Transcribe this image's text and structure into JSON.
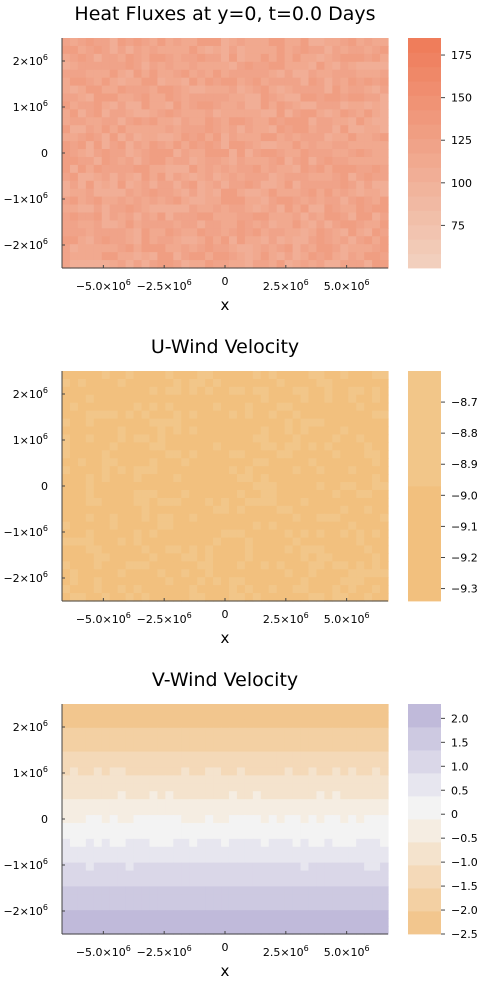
{
  "chart_data": [
    {
      "type": "heatmap",
      "title": "Heat Fluxes at y=0, t=0.0 Days",
      "xlabel": "x",
      "ylabel": "",
      "x_ticks": [
        {
          "value": -5000000,
          "base": "−5.0×10",
          "exp": "6"
        },
        {
          "value": -2500000,
          "base": "−2.5×10",
          "exp": "6"
        },
        {
          "value": 0,
          "base": "0",
          "exp": ""
        },
        {
          "value": 2500000,
          "base": "2.5×10",
          "exp": "6"
        },
        {
          "value": 5000000,
          "base": "5.0×10",
          "exp": "6"
        }
      ],
      "y_ticks": [
        {
          "value": 2000000,
          "base": "2×10",
          "exp": "6"
        },
        {
          "value": 1000000,
          "base": "1×10",
          "exp": "6"
        },
        {
          "value": 0,
          "base": "0",
          "exp": ""
        },
        {
          "value": -1000000,
          "base": "−1×10",
          "exp": "6"
        },
        {
          "value": -2000000,
          "base": "−2×10",
          "exp": "6"
        }
      ],
      "xlim": [
        -6700000,
        6700000
      ],
      "ylim": [
        -2500000,
        2500000
      ],
      "color_range": [
        50,
        185
      ],
      "colorbar_ticks": [
        {
          "value": 175,
          "label": "175"
        },
        {
          "value": 150,
          "label": "150"
        },
        {
          "value": 125,
          "label": "125"
        },
        {
          "value": 100,
          "label": "100"
        },
        {
          "value": 75,
          "label": "75"
        }
      ],
      "colorbar_levels": 16,
      "colorbar_colors": [
        "#f2d2c0",
        "#ef7a58"
      ],
      "field": "random",
      "field_mean": 118,
      "field_spread": 14
    },
    {
      "type": "heatmap",
      "title": "U-Wind Velocity",
      "xlabel": "x",
      "ylabel": "",
      "x_ticks": [
        {
          "value": -5000000,
          "base": "−5.0×10",
          "exp": "6"
        },
        {
          "value": -2500000,
          "base": "−2.5×10",
          "exp": "6"
        },
        {
          "value": 0,
          "base": "0",
          "exp": ""
        },
        {
          "value": 2500000,
          "base": "2.5×10",
          "exp": "6"
        },
        {
          "value": 5000000,
          "base": "5.0×10",
          "exp": "6"
        }
      ],
      "y_ticks": [
        {
          "value": 2000000,
          "base": "2×10",
          "exp": "6"
        },
        {
          "value": 1000000,
          "base": "1×10",
          "exp": "6"
        },
        {
          "value": 0,
          "base": "0",
          "exp": ""
        },
        {
          "value": -1000000,
          "base": "−1×10",
          "exp": "6"
        },
        {
          "value": -2000000,
          "base": "−2×10",
          "exp": "6"
        }
      ],
      "xlim": [
        -6700000,
        6700000
      ],
      "ylim": [
        -2500000,
        2500000
      ],
      "color_range": [
        -9.34,
        -8.6
      ],
      "colorbar_ticks": [
        {
          "value": -8.7,
          "label": "−8.7"
        },
        {
          "value": -8.8,
          "label": "−8.8"
        },
        {
          "value": -8.9,
          "label": "−8.9"
        },
        {
          "value": -9.0,
          "label": "−9.0"
        },
        {
          "value": -9.1,
          "label": "−9.1"
        },
        {
          "value": -9.2,
          "label": "−9.2"
        },
        {
          "value": -9.3,
          "label": "−9.3"
        }
      ],
      "colorbar_levels": 2,
      "colorbar_colors": [
        "#f2bd78",
        "#f2c98f"
      ],
      "field": "random",
      "field_mean": -9.0,
      "field_spread": 0.06
    },
    {
      "type": "heatmap",
      "title": "V-Wind Velocity",
      "xlabel": "x",
      "ylabel": "",
      "x_ticks": [
        {
          "value": -5000000,
          "base": "−5.0×10",
          "exp": "6"
        },
        {
          "value": -2500000,
          "base": "−2.5×10",
          "exp": "6"
        },
        {
          "value": 0,
          "base": "0",
          "exp": ""
        },
        {
          "value": 2500000,
          "base": "2.5×10",
          "exp": "6"
        },
        {
          "value": 5000000,
          "base": "5.0×10",
          "exp": "6"
        }
      ],
      "y_ticks": [
        {
          "value": 2000000,
          "base": "2×10",
          "exp": "6"
        },
        {
          "value": 1000000,
          "base": "1×10",
          "exp": "6"
        },
        {
          "value": 0,
          "base": "0",
          "exp": ""
        },
        {
          "value": -1000000,
          "base": "−1×10",
          "exp": "6"
        },
        {
          "value": -2000000,
          "base": "−2×10",
          "exp": "6"
        }
      ],
      "xlim": [
        -6700000,
        6700000
      ],
      "ylim": [
        -2500000,
        2500000
      ],
      "color_range": [
        -2.5,
        2.3
      ],
      "colorbar_ticks": [
        {
          "value": 2.0,
          "label": "2.0"
        },
        {
          "value": 1.5,
          "label": "1.5"
        },
        {
          "value": 1.0,
          "label": "1.0"
        },
        {
          "value": 0.5,
          "label": "0.5"
        },
        {
          "value": 0.0,
          "label": "0"
        },
        {
          "value": -0.5,
          "label": "−0.5"
        },
        {
          "value": -1.0,
          "label": "−1.0"
        },
        {
          "value": -1.5,
          "label": "−1.5"
        },
        {
          "value": -2.0,
          "label": "−2.0"
        },
        {
          "value": -2.5,
          "label": "−2.5"
        }
      ],
      "colorbar_levels": 10,
      "colorbar_colors": [
        "#f2c183",
        "#f5efe6",
        "#f3f3f5",
        "#b9b3d7"
      ],
      "colorbar_stops": [
        0,
        0.47,
        0.56,
        1
      ],
      "field": "bands",
      "field_top": -2.4,
      "field_bottom": 2.2
    }
  ]
}
